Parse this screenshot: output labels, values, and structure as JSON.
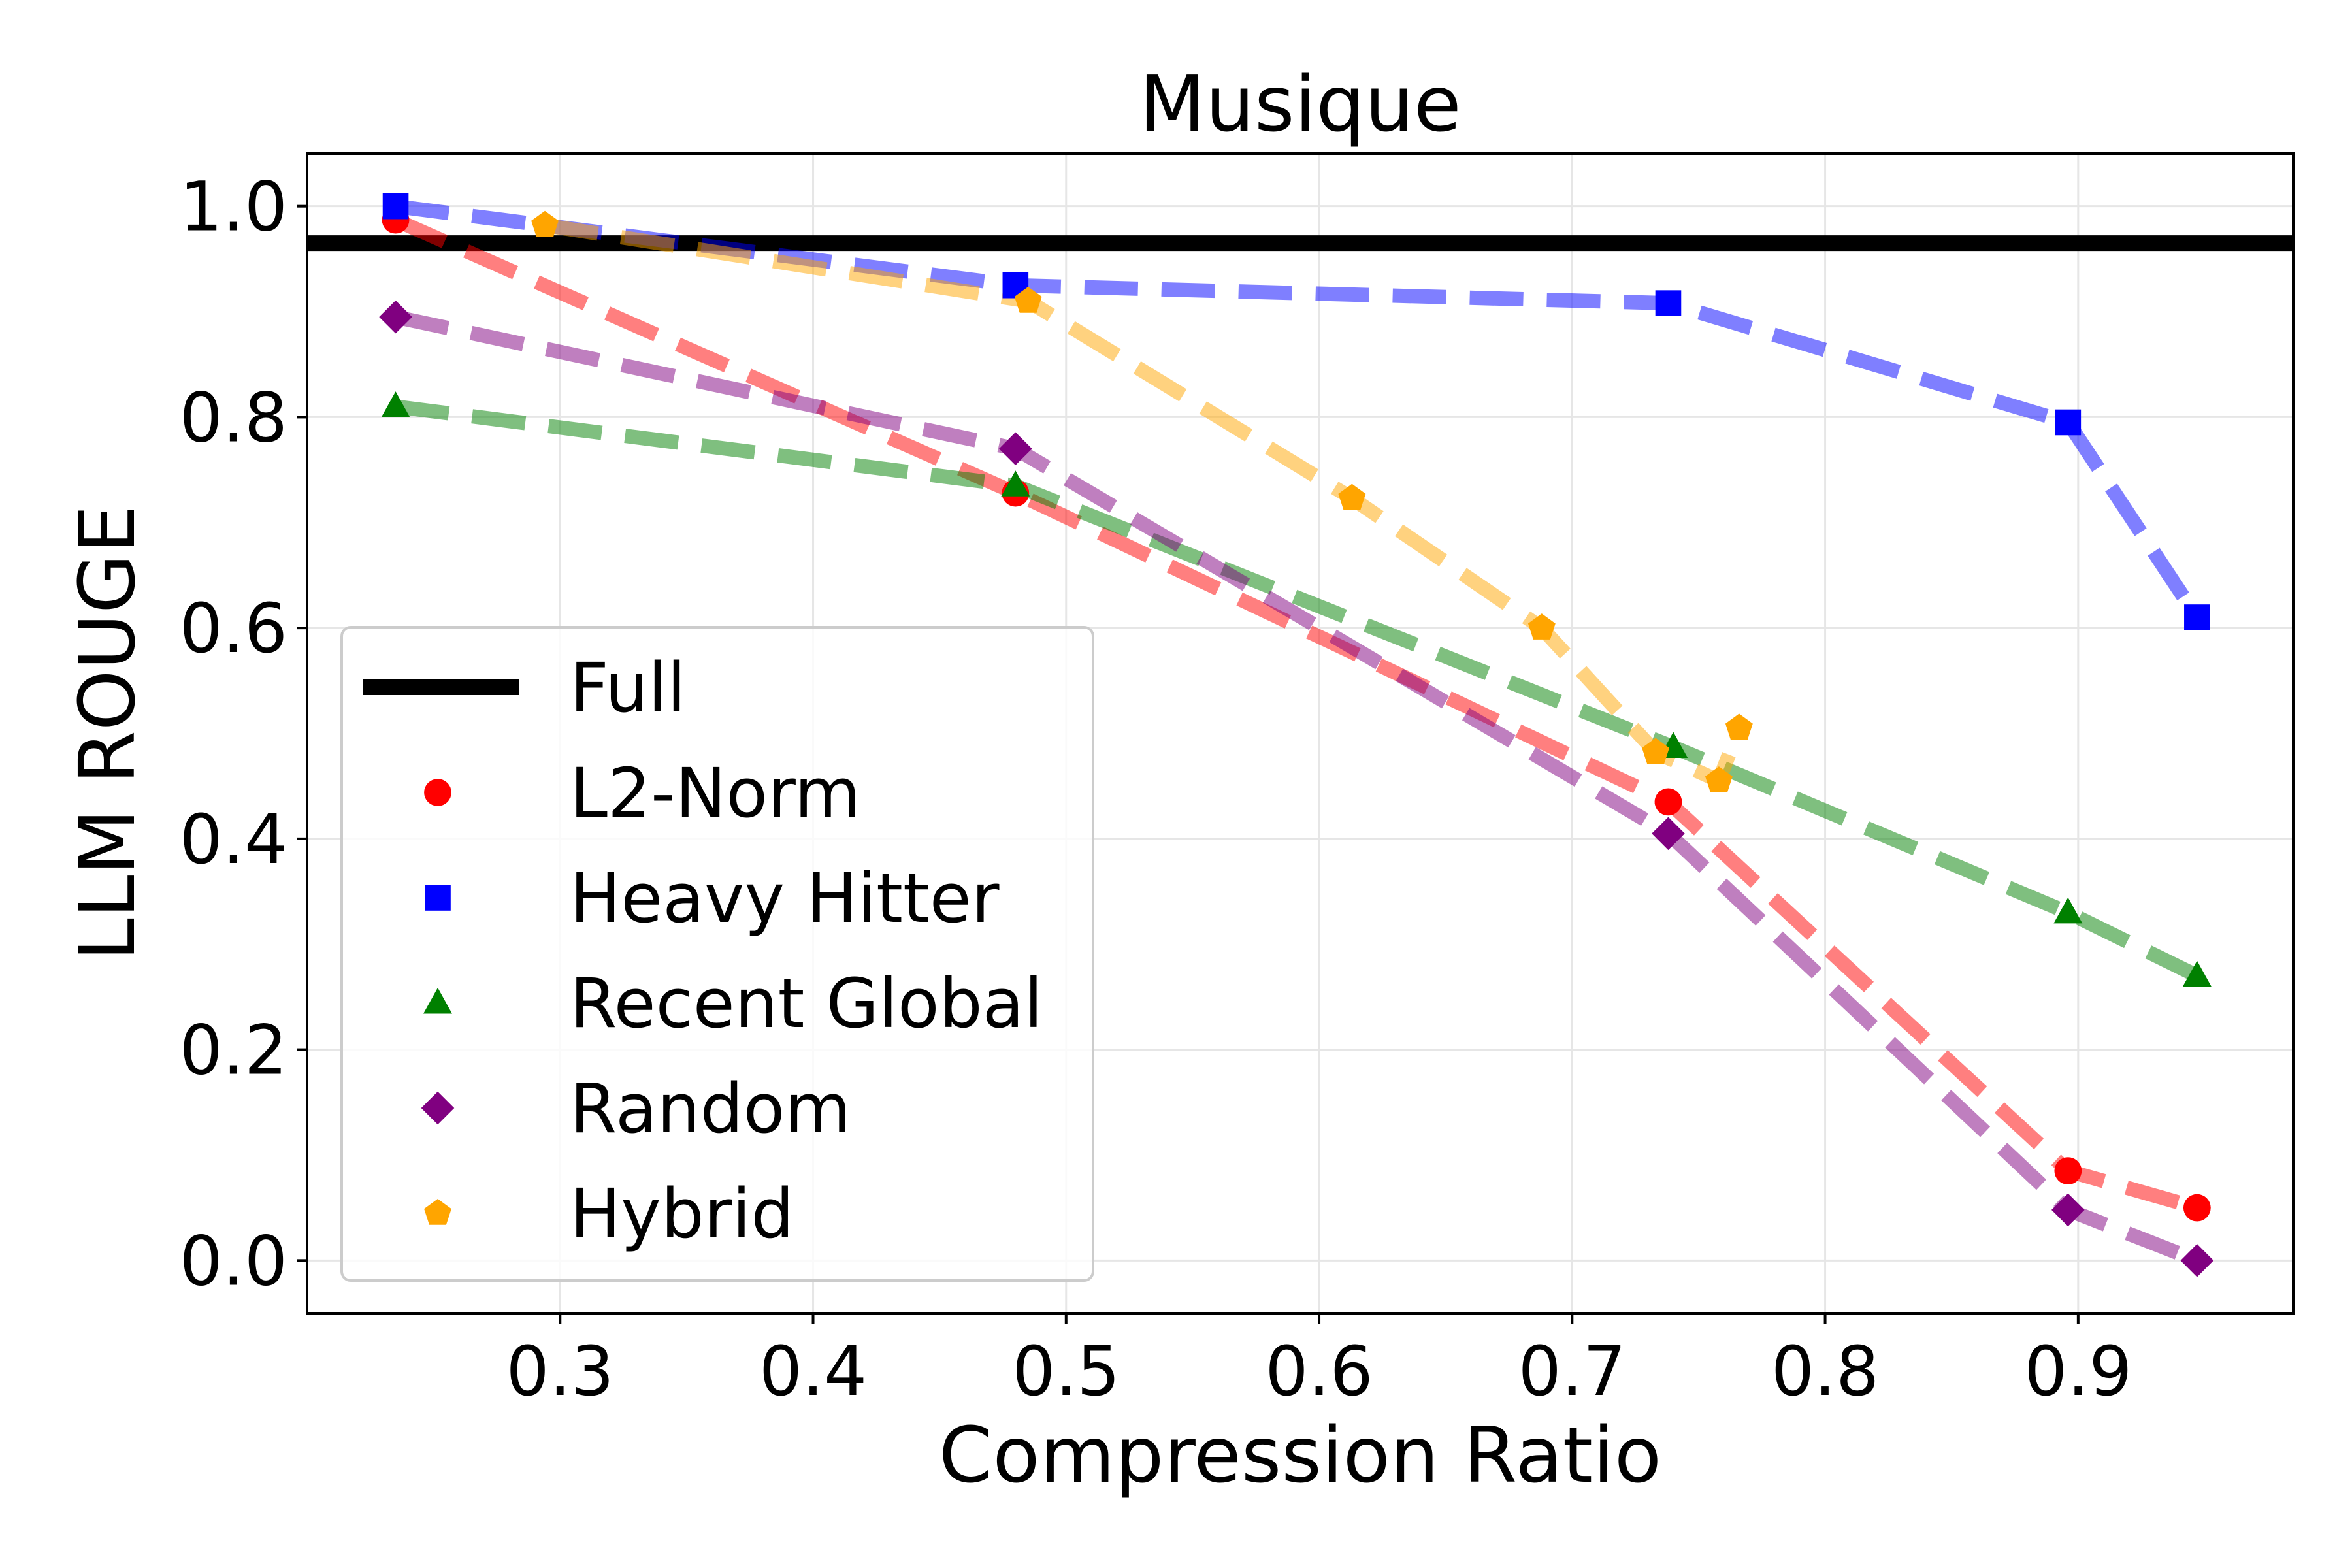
{
  "chart_data": {
    "type": "line",
    "title": "Musique",
    "xlabel": "Compression Ratio",
    "ylabel": "LLM ROUGE",
    "xlim": [
      0.2,
      0.985
    ],
    "ylim": [
      -0.05,
      1.05
    ],
    "xticks": [
      0.3,
      0.4,
      0.5,
      0.6,
      0.7,
      0.8,
      0.9
    ],
    "xtick_labels": [
      "0.3",
      "0.4",
      "0.5",
      "0.6",
      "0.7",
      "0.8",
      "0.9"
    ],
    "yticks": [
      0.0,
      0.2,
      0.4,
      0.6,
      0.8,
      1.0
    ],
    "ytick_labels": [
      "0.0",
      "0.2",
      "0.4",
      "0.6",
      "0.8",
      "1.0"
    ],
    "grid": true,
    "legend_position": "lower-left",
    "reference_line": {
      "name": "Full",
      "y": 0.965,
      "color": "#000000"
    },
    "series": [
      {
        "name": "L2-Norm",
        "color": "#ff0000",
        "marker": "circle",
        "x": [
          0.235,
          0.48,
          0.738,
          0.896,
          0.947
        ],
        "y": [
          0.987,
          0.728,
          0.435,
          0.085,
          0.05
        ]
      },
      {
        "name": "Heavy Hitter",
        "color": "#0000ff",
        "marker": "square",
        "x": [
          0.235,
          0.48,
          0.738,
          0.896,
          0.947
        ],
        "y": [
          1.0,
          0.925,
          0.908,
          0.795,
          0.61
        ]
      },
      {
        "name": "Recent Global",
        "color": "#008000",
        "marker": "triangle",
        "x": [
          0.235,
          0.48,
          0.74,
          0.896,
          0.947
        ],
        "y": [
          0.81,
          0.735,
          0.487,
          0.33,
          0.27
        ]
      },
      {
        "name": "Random",
        "color": "#800080",
        "marker": "diamond",
        "x": [
          0.235,
          0.48,
          0.738,
          0.896,
          0.947
        ],
        "y": [
          0.895,
          0.77,
          0.405,
          0.048,
          0.0
        ]
      },
      {
        "name": "Hybrid",
        "color": "#ffa500",
        "marker": "pentagon",
        "x": [
          0.294,
          0.485,
          0.613,
          0.688,
          0.733,
          0.758,
          0.766
        ],
        "y": [
          0.982,
          0.91,
          0.723,
          0.6,
          0.482,
          0.455,
          0.505
        ]
      }
    ]
  }
}
